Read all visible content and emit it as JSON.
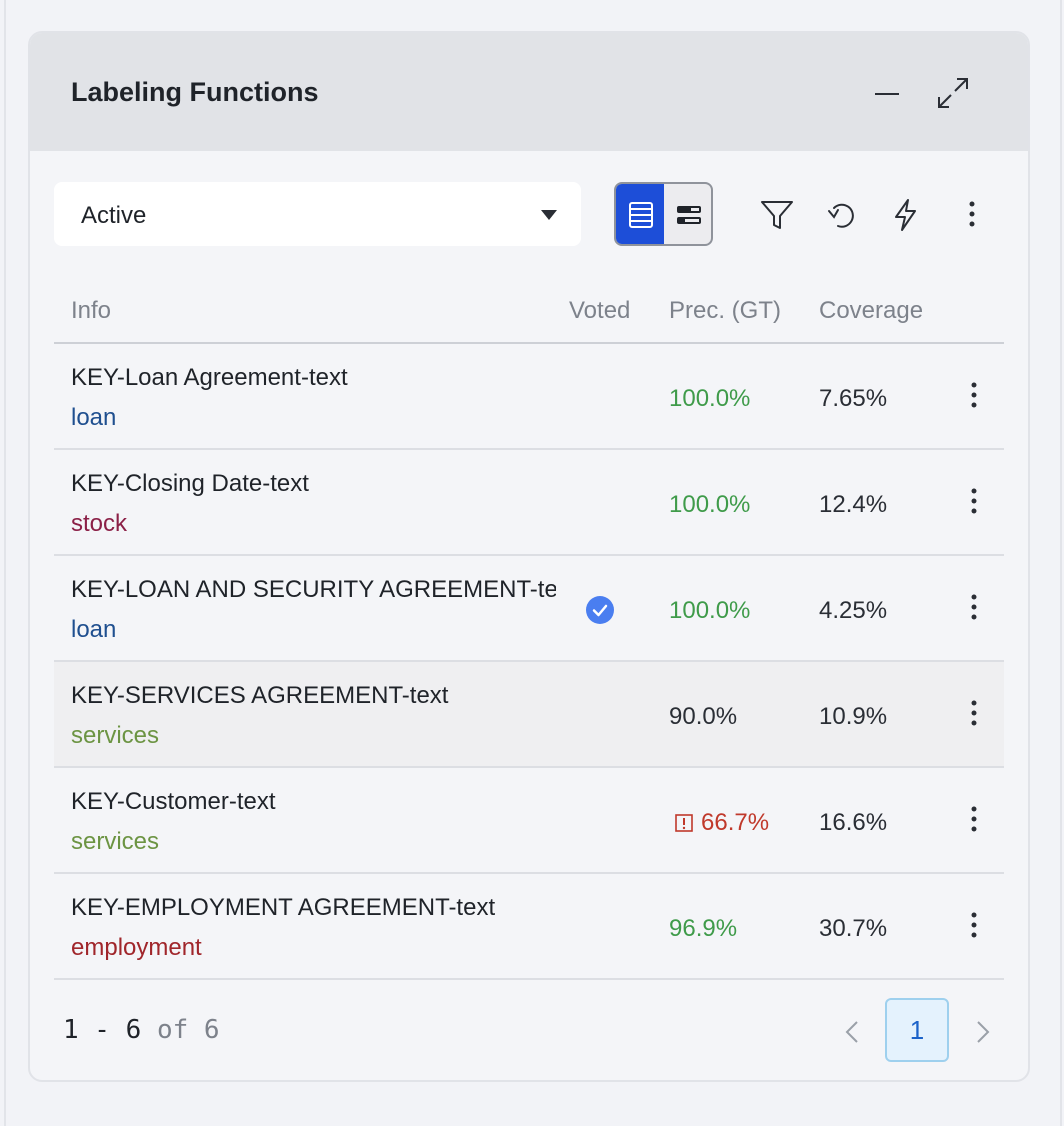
{
  "panel": {
    "title": "Labeling Functions"
  },
  "filter": {
    "selected": "Active"
  },
  "table": {
    "headers": {
      "info": "Info",
      "voted": "Voted",
      "precision": "Prec. (GT)",
      "coverage": "Coverage"
    },
    "rows": [
      {
        "name": "KEY-Loan Agreement-text",
        "tag": "loan",
        "tag_color": "#1f4f8f",
        "voted": false,
        "precision": "100.0%",
        "precision_color": "#3f9b4a",
        "warning": false,
        "coverage": "7.65%"
      },
      {
        "name": "KEY-Closing Date-text",
        "tag": "stock",
        "tag_color": "#8b2047",
        "voted": false,
        "precision": "100.0%",
        "precision_color": "#3f9b4a",
        "warning": false,
        "coverage": "12.4%"
      },
      {
        "name": "KEY-LOAN AND SECURITY AGREEMENT-text",
        "tag": "loan",
        "tag_color": "#1f4f8f",
        "voted": true,
        "precision": "100.0%",
        "precision_color": "#3f9b4a",
        "warning": false,
        "coverage": "4.25%"
      },
      {
        "name": "KEY-SERVICES AGREEMENT-text",
        "tag": "services",
        "tag_color": "#6c9443",
        "voted": false,
        "precision": "90.0%",
        "precision_color": "#2a2e35",
        "warning": false,
        "coverage": "10.9%"
      },
      {
        "name": "KEY-Customer-text",
        "tag": "services",
        "tag_color": "#6c9443",
        "voted": false,
        "precision": "66.7%",
        "precision_color": "#c0392b",
        "warning": true,
        "coverage": "16.6%"
      },
      {
        "name": "KEY-EMPLOYMENT AGREEMENT-text",
        "tag": "employment",
        "tag_color": "#a0262b",
        "voted": false,
        "precision": "96.9%",
        "precision_color": "#3f9b4a",
        "warning": false,
        "coverage": "30.7%"
      }
    ]
  },
  "pagination": {
    "range": "1 - 6",
    "total": "of 6",
    "current_page": "1"
  },
  "colors": {
    "accent": "#1d4ed8",
    "voted_badge": "#4a7ef0"
  }
}
